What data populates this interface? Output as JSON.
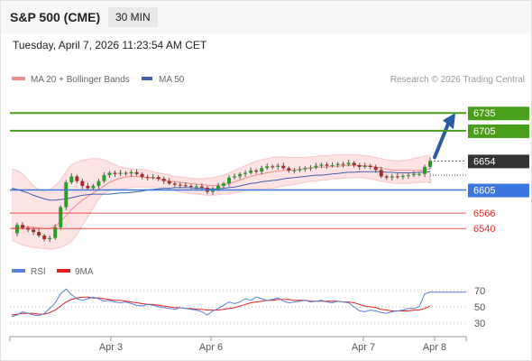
{
  "header": {
    "symbol": "S&P 500 (CME)",
    "interval": "30 MIN",
    "datetime": "Tuesday, April 7, 2026 11:23:54 AM CET"
  },
  "legend": {
    "bollinger_label": "MA 20 + Bollinger Bands",
    "ma50_label": "MA 50",
    "source": "Research © 2026 Trading Central",
    "rsi_label": "RSI",
    "rsi_ma_label": "9MA"
  },
  "colors": {
    "bollinger": "#f28c8c",
    "band_fill": "#fde3e3",
    "ma50": "#4060a8",
    "up": "#2a9d2a",
    "down": "#a52a2a",
    "target": "#4a9f1a",
    "pivot": "#3a78e0",
    "support": "#e03030",
    "last": "#333333",
    "rsi": "#5a7fd8",
    "rsi_ma": "#e02020",
    "arrow": "#2a5aa0"
  },
  "chart_data": [
    {
      "type": "candlestick",
      "title": "",
      "x_tick_labels": [
        "Apr 3",
        "Apr 6",
        "Apr 7",
        "Apr 8"
      ],
      "ylim": [
        6490,
        6775
      ],
      "price_levels": [
        {
          "label": "6735",
          "value": 6735,
          "kind": "target"
        },
        {
          "label": "6705",
          "value": 6705,
          "kind": "target"
        },
        {
          "label": "6654",
          "value": 6654,
          "kind": "last"
        },
        {
          "label": "6605",
          "value": 6605,
          "kind": "pivot"
        },
        {
          "label": "6566",
          "value": 6566,
          "kind": "support"
        },
        {
          "label": "6540",
          "value": 6540,
          "kind": "support"
        }
      ],
      "close_path": [
        6532,
        6546,
        6541,
        6538,
        6534,
        6528,
        6522,
        6524,
        6542,
        6576,
        6618,
        6628,
        6620,
        6612,
        6608,
        6612,
        6620,
        6630,
        6634,
        6632,
        6634,
        6633,
        6635,
        6632,
        6627,
        6626,
        6627,
        6624,
        6620,
        6616,
        6614,
        6613,
        6612,
        6611,
        6611,
        6609,
        6602,
        6606,
        6612,
        6616,
        6626,
        6628,
        6632,
        6634,
        6638,
        6636,
        6642,
        6645,
        6644,
        6646,
        6642,
        6638,
        6638,
        6640,
        6642,
        6643,
        6646,
        6648,
        6646,
        6647,
        6649,
        6648,
        6651,
        6647,
        6644,
        6646,
        6644,
        6639,
        6628,
        6626,
        6628,
        6627,
        6629,
        6630,
        6632,
        6632,
        6644,
        6654
      ],
      "ma20": [
        6540,
        6542,
        6543,
        6543,
        6542,
        6541,
        6540,
        6540,
        6544,
        6552,
        6562,
        6572,
        6580,
        6588,
        6594,
        6600,
        6606,
        6612,
        6618,
        6622,
        6625,
        6627,
        6628,
        6628,
        6627,
        6626,
        6625,
        6624,
        6622,
        6620,
        6619,
        6618,
        6617,
        6616,
        6615,
        6614,
        6613,
        6612,
        6613,
        6614,
        6616,
        6619,
        6622,
        6625,
        6628,
        6630,
        6632,
        6634,
        6636,
        6637,
        6638,
        6638,
        6639,
        6640,
        6641,
        6642,
        6643,
        6644,
        6644,
        6645,
        6645,
        6646,
        6646,
        6647,
        6646,
        6646,
        6645,
        6644,
        6642,
        6640,
        6639,
        6638,
        6638,
        6638,
        6638,
        6638,
        6639,
        6641
      ],
      "bb_upper": [
        6640,
        6638,
        6632,
        6622,
        6612,
        6605,
        6603,
        6606,
        6612,
        6622,
        6636,
        6648,
        6652,
        6655,
        6657,
        6658,
        6658,
        6656,
        6652,
        6648,
        6644,
        6642,
        6641,
        6640,
        6640,
        6638,
        6636,
        6634,
        6632,
        6630,
        6628,
        6627,
        6626,
        6625,
        6624,
        6624,
        6625,
        6626,
        6628,
        6630,
        6634,
        6638,
        6642,
        6646,
        6650,
        6654,
        6656,
        6658,
        6660,
        6661,
        6661,
        6660,
        6660,
        6660,
        6660,
        6661,
        6662,
        6663,
        6663,
        6664,
        6664,
        6665,
        6665,
        6664,
        6664,
        6663,
        6662,
        6660,
        6658,
        6656,
        6655,
        6654,
        6655,
        6656,
        6658,
        6660,
        6662,
        6664
      ],
      "bb_lower": [
        6520,
        6516,
        6512,
        6510,
        6508,
        6507,
        6506,
        6505,
        6506,
        6508,
        6512,
        6518,
        6530,
        6545,
        6560,
        6575,
        6590,
        6600,
        6604,
        6606,
        6606,
        6608,
        6609,
        6610,
        6610,
        6610,
        6610,
        6609,
        6608,
        6606,
        6604,
        6602,
        6600,
        6599,
        6598,
        6597,
        6596,
        6596,
        6597,
        6598,
        6598,
        6600,
        6602,
        6604,
        6606,
        6606,
        6606,
        6608,
        6608,
        6610,
        6612,
        6613,
        6614,
        6616,
        6618,
        6620,
        6620,
        6622,
        6622,
        6624,
        6624,
        6625,
        6625,
        6626,
        6626,
        6625,
        6624,
        6622,
        6620,
        6618,
        6617,
        6616,
        6616,
        6616,
        6617,
        6618,
        6618,
        6618
      ],
      "ma50": [
        6608,
        6606,
        6603,
        6600,
        6596,
        6593,
        6590,
        6588,
        6588,
        6589,
        6590,
        6592,
        6594,
        6596,
        6597,
        6598,
        6598,
        6598,
        6598,
        6599,
        6600,
        6600,
        6601,
        6602,
        6603,
        6605,
        6606,
        6607,
        6608,
        6608,
        6609,
        6609,
        6609,
        6609,
        6608,
        6608,
        6607,
        6607,
        6607,
        6608,
        6609,
        6610,
        6612,
        6614,
        6616,
        6617,
        6619,
        6620,
        6621,
        6622,
        6624,
        6625,
        6626,
        6627,
        6628,
        6629,
        6630,
        6630,
        6631,
        6632,
        6633,
        6634,
        6635,
        6635,
        6636,
        6636,
        6636,
        6636,
        6636,
        6635,
        6635,
        6634,
        6634,
        6634,
        6634,
        6635,
        6635,
        6636
      ]
    },
    {
      "type": "line",
      "title": "",
      "y_tick_labels": [
        "70",
        "50",
        "30"
      ],
      "ylim": [
        20,
        80
      ],
      "series": [
        {
          "name": "RSI",
          "values": [
            38,
            40,
            44,
            42,
            40,
            39,
            42,
            48,
            55,
            66,
            72,
            65,
            60,
            58,
            60,
            62,
            60,
            57,
            58,
            56,
            55,
            56,
            54,
            52,
            51,
            53,
            52,
            50,
            49,
            48,
            47,
            49,
            48,
            47,
            46,
            44,
            40,
            45,
            48,
            52,
            56,
            54,
            56,
            60,
            58,
            62,
            60,
            58,
            59,
            61,
            57,
            55,
            56,
            57,
            58,
            56,
            57,
            58,
            56,
            55,
            57,
            56,
            55,
            50,
            45,
            44,
            46,
            45,
            43,
            42,
            44,
            45,
            46,
            48,
            48,
            50,
            66,
            68
          ]
        },
        {
          "name": "9MA",
          "values": [
            40,
            41,
            42,
            42,
            42,
            41,
            41,
            43,
            46,
            51,
            56,
            59,
            61,
            62,
            62,
            61,
            61,
            60,
            59,
            58,
            58,
            57,
            56,
            55,
            54,
            53,
            53,
            52,
            51,
            50,
            49,
            49,
            48,
            48,
            47,
            47,
            46,
            46,
            46,
            47,
            48,
            49,
            51,
            53,
            55,
            56,
            57,
            58,
            58,
            59,
            59,
            59,
            58,
            58,
            58,
            57,
            57,
            57,
            57,
            57,
            57,
            56,
            56,
            55,
            53,
            51,
            50,
            49,
            47,
            46,
            45,
            45,
            45,
            45,
            46,
            46,
            48,
            51
          ]
        }
      ]
    }
  ]
}
